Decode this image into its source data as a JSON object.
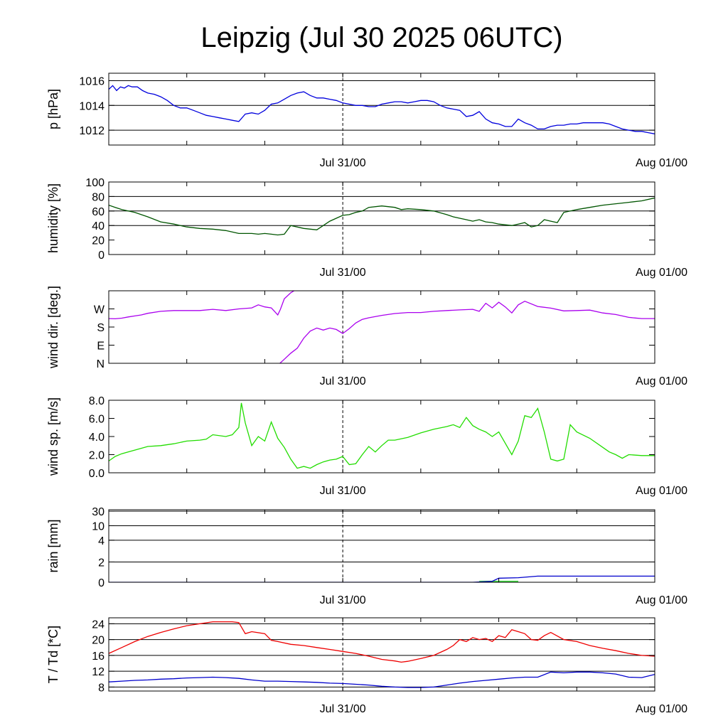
{
  "title": "Leipzig (Jul 30 2025 06UTC)",
  "chart_data": [
    {
      "type": "line",
      "ylabel": "p [hPa]",
      "ylim": [
        1010.8,
        1016.6
      ],
      "yticks": [
        1012,
        1014,
        1016
      ],
      "ytick_labels": [
        "1012",
        "1014",
        "1016"
      ],
      "grid_y": [
        1012,
        1014,
        1016
      ],
      "x_ticks": [
        0,
        18,
        42
      ],
      "x_tick_labels": [
        "",
        "Jul 31/00",
        "Aug 01/00"
      ],
      "xlim": [
        0,
        42
      ],
      "series": [
        {
          "color": "#0000dd",
          "x": [
            0,
            0.3,
            0.6,
            0.9,
            1.2,
            1.5,
            1.8,
            2.2,
            2.6,
            3.0,
            3.5,
            4.0,
            4.5,
            5.0,
            5.5,
            6.0,
            6.5,
            7.0,
            7.5,
            8.0,
            8.5,
            9.0,
            9.5,
            10.0,
            10.5,
            11.0,
            11.5,
            12.0,
            12.5,
            13.0,
            13.5,
            14.0,
            14.5,
            15.0,
            15.5,
            16.0,
            16.5,
            17.0,
            17.5,
            18.0,
            18.5,
            19.0,
            19.5,
            20.0,
            20.5,
            21.0,
            21.5,
            22.0,
            22.5,
            23.0,
            23.5,
            24.0,
            24.5,
            25.0,
            25.5,
            26.0,
            26.5,
            27.0,
            27.5,
            28.0,
            28.5,
            29.0,
            29.5,
            30.0,
            30.5,
            31.0,
            31.5,
            32.0,
            32.5,
            33.0,
            33.5,
            34.0,
            34.5,
            35.0,
            35.5,
            36.0,
            36.5,
            37.0,
            37.5,
            38.0,
            38.5,
            39.0,
            39.5,
            40.0,
            40.5,
            41.0,
            41.5,
            42.0
          ],
          "y": [
            1015.3,
            1015.6,
            1015.2,
            1015.5,
            1015.4,
            1015.6,
            1015.5,
            1015.5,
            1015.2,
            1015.0,
            1014.9,
            1014.7,
            1014.4,
            1014.0,
            1013.8,
            1013.8,
            1013.6,
            1013.4,
            1013.2,
            1013.1,
            1013.0,
            1012.9,
            1012.8,
            1012.7,
            1013.3,
            1013.4,
            1013.3,
            1013.6,
            1014.1,
            1014.2,
            1014.5,
            1014.8,
            1015.0,
            1015.1,
            1014.8,
            1014.6,
            1014.6,
            1014.5,
            1014.4,
            1014.2,
            1014.1,
            1014.0,
            1014.0,
            1013.9,
            1013.9,
            1014.1,
            1014.2,
            1014.3,
            1014.3,
            1014.2,
            1014.3,
            1014.4,
            1014.4,
            1014.3,
            1014.0,
            1013.8,
            1013.7,
            1013.6,
            1013.1,
            1013.2,
            1013.5,
            1012.9,
            1012.6,
            1012.5,
            1012.3,
            1012.3,
            1012.9,
            1012.6,
            1012.4,
            1012.1,
            1012.1,
            1012.3,
            1012.4,
            1012.4,
            1012.5,
            1012.5,
            1012.6,
            1012.6,
            1012.6,
            1012.6,
            1012.5,
            1012.3,
            1012.1,
            1012.0,
            1011.9,
            1011.9,
            1011.8,
            1011.7
          ]
        }
      ]
    },
    {
      "type": "line",
      "ylabel": "humidity [%]",
      "ylim": [
        0,
        100
      ],
      "yticks": [
        0,
        20,
        40,
        60,
        80,
        100
      ],
      "ytick_labels": [
        "0",
        "20",
        "40",
        "60",
        "80",
        "100"
      ],
      "grid_y": [
        40,
        60,
        80
      ],
      "x_ticks": [
        0,
        18,
        42
      ],
      "x_tick_labels": [
        "",
        "Jul 31/00",
        "Aug 01/00"
      ],
      "xlim": [
        0,
        42
      ],
      "series": [
        {
          "color": "#005500",
          "x": [
            0,
            0.5,
            1.0,
            1.5,
            2.0,
            3.0,
            4.0,
            5.0,
            6.0,
            7.0,
            8.0,
            9.0,
            10.0,
            10.5,
            11.0,
            11.5,
            12.0,
            12.5,
            13.0,
            13.5,
            14.0,
            15.0,
            16.0,
            17.0,
            18.0,
            18.5,
            19.0,
            19.5,
            20.0,
            21.0,
            22.0,
            22.5,
            23.0,
            24.0,
            25.0,
            26.0,
            26.5,
            27.0,
            27.5,
            28.0,
            28.5,
            29.0,
            29.5,
            30.0,
            30.5,
            31.0,
            31.5,
            32.0,
            32.5,
            33.0,
            33.5,
            34.0,
            34.5,
            35.0,
            36.0,
            37.0,
            38.0,
            39.0,
            40.0,
            41.0,
            42.0
          ],
          "y": [
            68,
            65,
            62,
            60,
            58,
            52,
            45,
            42,
            38,
            36,
            35,
            33,
            29,
            29,
            29,
            28,
            29,
            28,
            27,
            28,
            40,
            36,
            34,
            46,
            54,
            55,
            58,
            60,
            65,
            67,
            65,
            62,
            63,
            62,
            60,
            55,
            52,
            50,
            48,
            46,
            48,
            45,
            44,
            42,
            41,
            40,
            42,
            44,
            38,
            40,
            48,
            46,
            44,
            58,
            62,
            65,
            68,
            70,
            72,
            74,
            78
          ]
        }
      ]
    },
    {
      "type": "line",
      "ylabel": "wind dir. [deg.]",
      "ylim": [
        0,
        360
      ],
      "yticks": [
        0,
        90,
        180,
        270
      ],
      "ytick_labels": [
        "N",
        "E",
        "S",
        "W"
      ],
      "grid_y": [],
      "x_ticks": [
        0,
        18,
        42
      ],
      "x_tick_labels": [
        "",
        "Jul 31/00",
        "Aug 01/00"
      ],
      "xlim": [
        0,
        42
      ],
      "series": [
        {
          "color": "#aa00ee",
          "x": [
            0,
            0.5,
            1.0,
            1.5,
            2.0,
            2.5,
            3.0,
            4.0,
            5.0,
            6.0,
            7.0,
            8.0,
            9.0,
            10.0,
            11.0,
            11.5,
            12.0,
            12.5,
            13.0,
            13.2,
            13.5,
            14.0,
            14.5,
            15.0
          ],
          "y": [
            222,
            221,
            224,
            230,
            235,
            240,
            248,
            258,
            262,
            262,
            262,
            268,
            262,
            270,
            275,
            290,
            280,
            275,
            240,
            268,
            320,
            350,
            370,
            380
          ]
        },
        {
          "color": "#aa00ee",
          "x": [
            13.0,
            13.5,
            14.0,
            14.5,
            15.0,
            15.5,
            16.0,
            16.5,
            17.0,
            17.5,
            18.0,
            18.5,
            19.0,
            19.5,
            20.0,
            21.0,
            22.0,
            23.0,
            24.0,
            25.0,
            26.0,
            27.0,
            28.0,
            28.5,
            29.0,
            29.5,
            30.0,
            30.5,
            31.0,
            31.5,
            32.0,
            33.0,
            34.0,
            35.0,
            36.0,
            37.0,
            38.0,
            39.0,
            40.0,
            40.5,
            41.0,
            42.0
          ],
          "y": [
            -10,
            20,
            50,
            75,
            125,
            160,
            175,
            165,
            175,
            168,
            148,
            172,
            200,
            218,
            226,
            238,
            247,
            252,
            252,
            258,
            262,
            265,
            268,
            258,
            298,
            275,
            303,
            280,
            250,
            290,
            308,
            282,
            274,
            260,
            262,
            264,
            250,
            242,
            228,
            225,
            222,
            222
          ]
        }
      ]
    },
    {
      "type": "line",
      "ylabel": "wind sp. [m/s]",
      "ylim": [
        0,
        8
      ],
      "yticks": [
        0,
        2,
        4,
        6,
        8
      ],
      "ytick_labels": [
        "0.0",
        "2.0",
        "4.0",
        "6.0",
        "8.0"
      ],
      "grid_y": [],
      "x_ticks": [
        0,
        18,
        42
      ],
      "x_tick_labels": [
        "",
        "Jul 31/00",
        "Aug 01/00"
      ],
      "xlim": [
        0,
        42
      ],
      "series": [
        {
          "color": "#22dd00",
          "x": [
            0,
            0.5,
            1.0,
            2.0,
            3.0,
            4.0,
            5.0,
            6.0,
            7.0,
            7.5,
            8.0,
            9.0,
            9.5,
            10.0,
            10.2,
            10.5,
            11.0,
            11.5,
            12.0,
            12.5,
            13.0,
            13.5,
            14.0,
            14.5,
            15.0,
            15.5,
            16.0,
            16.5,
            17.0,
            17.5,
            18.0,
            18.5,
            19.0,
            19.5,
            20.0,
            20.5,
            21.0,
            21.5,
            22.0,
            23.0,
            24.0,
            25.0,
            26.0,
            26.5,
            27.0,
            27.5,
            28.0,
            28.5,
            29.0,
            29.5,
            30.0,
            31.0,
            31.5,
            32.0,
            32.5,
            33.0,
            33.5,
            34.0,
            34.5,
            35.0,
            35.5,
            36.0,
            37.0,
            38.0,
            38.5,
            39.0,
            39.5,
            40.0,
            41.0,
            42.0
          ],
          "y": [
            1.3,
            1.8,
            2.1,
            2.5,
            2.9,
            3.0,
            3.2,
            3.5,
            3.6,
            3.7,
            4.2,
            4.0,
            4.2,
            5.0,
            7.7,
            5.5,
            3.0,
            4.0,
            3.5,
            5.6,
            3.8,
            2.8,
            1.5,
            0.5,
            0.7,
            0.5,
            0.9,
            1.2,
            1.4,
            1.5,
            1.8,
            0.9,
            1.0,
            2.0,
            2.9,
            2.3,
            3.0,
            3.6,
            3.6,
            3.9,
            4.4,
            4.8,
            5.1,
            5.3,
            5.0,
            6.1,
            5.2,
            4.8,
            4.5,
            4.0,
            4.5,
            2.0,
            3.5,
            6.3,
            6.1,
            7.1,
            4.5,
            1.5,
            1.3,
            1.5,
            5.3,
            4.5,
            3.8,
            2.8,
            2.3,
            2.0,
            1.6,
            2.0,
            1.9,
            1.9
          ]
        }
      ]
    },
    {
      "type": "bar",
      "ylabel": "rain [mm]",
      "scale": "nonlinear",
      "ylim": [
        0,
        30
      ],
      "yticks": [
        0,
        2,
        4,
        10,
        30
      ],
      "ytick_labels": [
        "0",
        "2",
        "4",
        "10",
        "30"
      ],
      "grid_y": [
        2,
        4,
        10,
        30
      ],
      "x_ticks": [
        0,
        18,
        42
      ],
      "x_tick_labels": [
        "",
        "Jul 31/00",
        "Aug 01/00"
      ],
      "xlim": [
        0,
        42
      ],
      "bars": {
        "color": "#44dd44",
        "x_start": [
          28.5
        ],
        "x_end": [
          31.5
        ],
        "values": [
          0.15
        ]
      },
      "series": [
        {
          "color": "#0000cc",
          "name": "",
          "x": [
            0,
            28.0,
            29.5,
            30.0,
            31.5,
            33.0,
            42.0
          ],
          "y": [
            0,
            0,
            0.1,
            0.4,
            0.45,
            0.6,
            0.6
          ]
        }
      ]
    },
    {
      "type": "line",
      "ylabel": "T / Td [*C]",
      "ylim": [
        7,
        25.5
      ],
      "yticks": [
        8,
        12,
        16,
        20,
        24
      ],
      "ytick_labels": [
        "8",
        "12",
        "16",
        "20",
        "24"
      ],
      "grid_y": [
        8,
        12,
        16,
        20,
        24
      ],
      "x_ticks": [
        0,
        18,
        42
      ],
      "x_tick_labels": [
        "",
        "Jul 31/00",
        "Aug 01/00"
      ],
      "xlim": [
        0,
        42
      ],
      "series": [
        {
          "color": "#ee0000",
          "x": [
            0,
            1,
            2,
            3,
            4,
            5,
            6,
            7,
            8,
            9,
            9.5,
            10.0,
            10.5,
            11.0,
            12.0,
            12.5,
            13.0,
            14.0,
            15.0,
            16.0,
            17.0,
            18.0,
            19.0,
            20.0,
            21.0,
            22.0,
            22.5,
            23.0,
            24.0,
            25.0,
            26.0,
            26.5,
            27.0,
            27.5,
            28.0,
            28.5,
            29.0,
            29.5,
            30.0,
            30.5,
            31.0,
            31.5,
            32.0,
            32.5,
            33.0,
            33.5,
            34.0,
            35.0,
            36.0,
            37.0,
            38.0,
            39.0,
            40.0,
            41.0,
            42.0
          ],
          "y": [
            16.5,
            18.0,
            19.5,
            20.8,
            21.8,
            22.7,
            23.5,
            24.0,
            24.5,
            24.5,
            24.5,
            24.3,
            21.5,
            22.0,
            21.5,
            19.8,
            19.5,
            18.8,
            18.5,
            18.0,
            17.5,
            17.0,
            16.5,
            15.8,
            15.0,
            14.6,
            14.3,
            14.5,
            15.2,
            16.0,
            17.5,
            18.5,
            20.0,
            19.5,
            20.5,
            20.0,
            20.3,
            19.5,
            21.0,
            20.5,
            22.5,
            22.0,
            21.5,
            20.0,
            19.8,
            21.0,
            21.8,
            20.0,
            19.5,
            18.5,
            17.8,
            17.2,
            16.5,
            16.0,
            15.8
          ]
        },
        {
          "color": "#0000cc",
          "x": [
            0,
            1,
            2,
            3,
            4,
            5,
            6,
            7,
            8,
            9,
            10,
            11,
            12,
            13,
            14,
            15,
            16,
            17,
            18,
            19,
            20,
            21,
            22,
            23,
            24,
            25,
            26,
            27,
            28,
            29,
            30,
            31,
            32,
            33,
            34,
            35,
            36,
            37,
            38,
            39,
            40,
            41,
            42
          ],
          "y": [
            9.3,
            9.5,
            9.7,
            9.8,
            10.0,
            10.1,
            10.3,
            10.4,
            10.5,
            10.4,
            10.2,
            9.8,
            9.5,
            9.5,
            9.4,
            9.3,
            9.2,
            9.0,
            8.9,
            8.7,
            8.5,
            8.2,
            8.0,
            7.9,
            7.9,
            8.0,
            8.5,
            9.0,
            9.4,
            9.7,
            10.0,
            10.3,
            10.5,
            10.5,
            11.8,
            11.6,
            11.8,
            11.8,
            11.6,
            11.3,
            10.5,
            10.4,
            11.2
          ]
        }
      ]
    }
  ]
}
